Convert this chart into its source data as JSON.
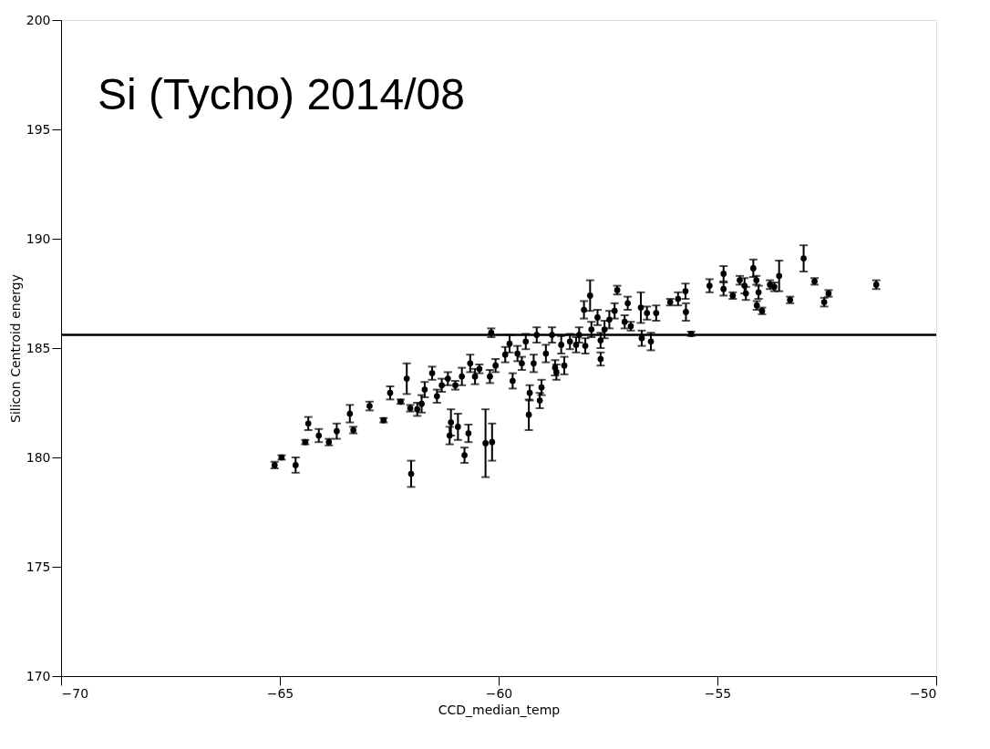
{
  "chart_data": {
    "type": "scatter",
    "xlabel": "CCD_median_temp",
    "ylabel": "Silicon Centroid energy",
    "annotations": [
      "Si (Tycho) 2014/08"
    ],
    "x": [
      -65.12,
      -64.96,
      -64.64,
      -64.42,
      -64.35,
      -64.11,
      -63.88,
      -63.7,
      -63.4,
      -63.32,
      -62.95,
      -62.63,
      -62.48,
      -62.24,
      -62.1,
      -62.02,
      -62.0,
      -61.86,
      -61.76,
      -61.69,
      -61.52,
      -61.41,
      -61.3,
      -61.16,
      -61.12,
      -61.09,
      -60.99,
      -60.93,
      -60.84,
      -60.78,
      -60.69,
      -60.65,
      -60.54,
      -60.44,
      -60.3,
      -60.17,
      -60.15,
      -60.2,
      -60.07,
      -59.85,
      -59.75,
      -59.68,
      -59.57,
      -59.47,
      -59.38,
      -59.31,
      -59.29,
      -59.2,
      -59.13,
      -59.06,
      -59.02,
      -58.92,
      -58.78,
      -58.71,
      -58.68,
      -58.57,
      -58.5,
      -58.37,
      -58.23,
      -58.16,
      -58.02,
      -58.05,
      -57.91,
      -57.88,
      -57.74,
      -57.67,
      -57.67,
      -57.58,
      -57.47,
      -57.35,
      -57.29,
      -57.12,
      -57.05,
      -56.98,
      -56.75,
      -56.73,
      -56.61,
      -56.52,
      -56.4,
      -56.08,
      -55.9,
      -55.73,
      -55.72,
      -55.6,
      -55.18,
      -54.86,
      -54.86,
      -54.65,
      -54.49,
      -54.38,
      -54.35,
      -54.18,
      -54.11,
      -54.06,
      -54.1,
      -53.98,
      -53.8,
      -53.7,
      -53.59,
      -53.34,
      -53.03,
      -52.78,
      -52.56,
      -52.46,
      -51.37
    ],
    "values": [
      179.65,
      180.0,
      179.65,
      180.7,
      181.55,
      181.0,
      180.7,
      181.2,
      182.0,
      181.25,
      182.35,
      181.7,
      182.95,
      182.55,
      183.6,
      182.25,
      179.25,
      182.2,
      182.45,
      183.1,
      183.85,
      182.8,
      183.3,
      183.6,
      181.0,
      181.6,
      183.3,
      181.4,
      183.7,
      180.1,
      181.1,
      184.3,
      183.7,
      184.05,
      180.65,
      185.7,
      180.7,
      183.7,
      184.2,
      184.7,
      185.2,
      183.5,
      184.75,
      184.3,
      185.3,
      181.95,
      182.95,
      184.3,
      185.6,
      182.6,
      183.2,
      184.75,
      185.6,
      184.1,
      183.9,
      185.15,
      184.2,
      185.3,
      185.15,
      185.6,
      185.1,
      186.75,
      187.4,
      185.85,
      186.4,
      184.5,
      185.35,
      185.85,
      186.3,
      186.7,
      187.65,
      186.2,
      187.05,
      186.0,
      186.85,
      185.45,
      186.6,
      185.3,
      186.6,
      187.1,
      187.25,
      187.6,
      186.65,
      185.65,
      187.85,
      188.4,
      187.7,
      187.4,
      188.1,
      187.85,
      187.5,
      188.65,
      188.1,
      187.55,
      186.95,
      186.7,
      187.9,
      187.8,
      188.3,
      187.2,
      189.1,
      188.05,
      187.1,
      187.5,
      187.9
    ],
    "errors": [
      0.15,
      0.1,
      0.35,
      0.1,
      0.3,
      0.3,
      0.15,
      0.35,
      0.4,
      0.15,
      0.2,
      0.1,
      0.3,
      0.1,
      0.7,
      0.15,
      0.6,
      0.3,
      0.4,
      0.35,
      0.3,
      0.3,
      0.3,
      0.3,
      0.4,
      0.6,
      0.2,
      0.6,
      0.4,
      0.35,
      0.4,
      0.4,
      0.35,
      0.2,
      1.55,
      0.2,
      0.85,
      0.3,
      0.3,
      0.35,
      0.4,
      0.35,
      0.35,
      0.3,
      0.35,
      0.7,
      0.35,
      0.4,
      0.35,
      0.35,
      0.35,
      0.4,
      0.35,
      0.35,
      0.35,
      0.4,
      0.4,
      0.35,
      0.35,
      0.35,
      0.35,
      0.4,
      0.7,
      0.35,
      0.35,
      0.3,
      0.35,
      0.4,
      0.4,
      0.35,
      0.2,
      0.3,
      0.3,
      0.2,
      0.7,
      0.35,
      0.3,
      0.4,
      0.35,
      0.15,
      0.3,
      0.35,
      0.4,
      0.1,
      0.3,
      0.35,
      0.3,
      0.15,
      0.2,
      0.35,
      0.3,
      0.4,
      0.2,
      0.3,
      0.2,
      0.15,
      0.2,
      0.2,
      0.7,
      0.15,
      0.6,
      0.15,
      0.2,
      0.15,
      0.2
    ],
    "color": "#000000",
    "marker": "circle",
    "xlim": [
      -70,
      -50
    ],
    "xticks": [
      -70,
      -65,
      -60,
      -55,
      -50
    ],
    "ylim": [
      170,
      200
    ],
    "yticks": [
      170,
      175,
      180,
      185,
      190,
      195,
      200
    ],
    "ref_lines": [
      {
        "axis": "y",
        "value": 185.6,
        "color": "#000000"
      }
    ],
    "grid": false
  }
}
